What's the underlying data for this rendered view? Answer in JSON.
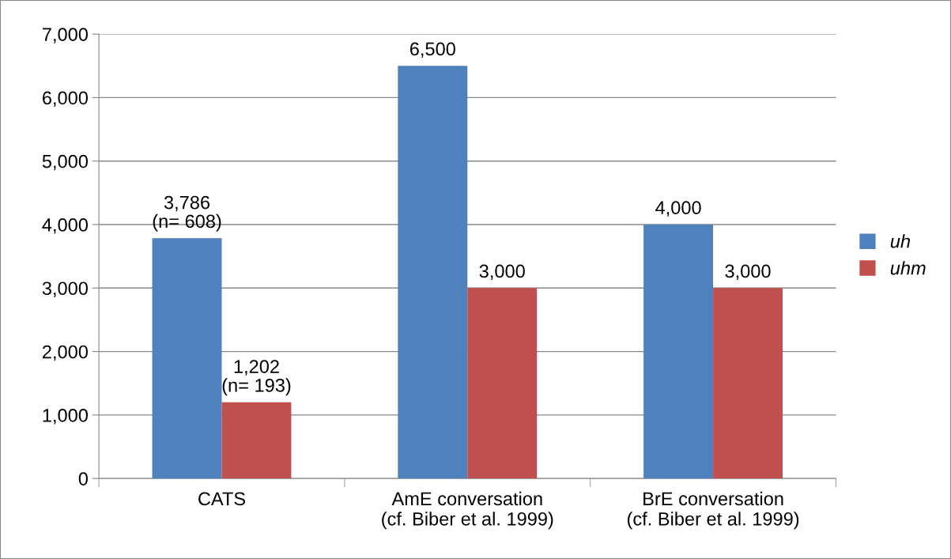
{
  "chart_data": {
    "type": "bar",
    "categories": [
      "CATS",
      "AmE conversation\n(cf. Biber et al. 1999)",
      "BrE conversation\n(cf. Biber et al. 1999)"
    ],
    "series": [
      {
        "name": "uh",
        "color": "#4f81bd",
        "values": [
          3786,
          6500,
          4000
        ],
        "value_labels": [
          "3,786\n(n= 608)",
          "6,500",
          "4,000"
        ]
      },
      {
        "name": "uhm",
        "color": "#c0504d",
        "values": [
          1202,
          3000,
          3000
        ],
        "value_labels": [
          "1,202\n(n= 193)",
          "3,000",
          "3,000"
        ]
      }
    ],
    "ylim": [
      0,
      7000
    ],
    "yticks": [
      0,
      {
        "value": 1000,
        "label": "1,000"
      },
      {
        "value": 2000,
        "label": "2,000"
      },
      {
        "value": 3000,
        "label": "3,000"
      },
      {
        "value": 4000,
        "label": "4,000"
      },
      {
        "value": 5000,
        "label": "5,000"
      },
      {
        "value": 6000,
        "label": "6,000"
      },
      {
        "value": 7000,
        "label": "7,000"
      }
    ],
    "grid": "y",
    "legend": "right"
  }
}
